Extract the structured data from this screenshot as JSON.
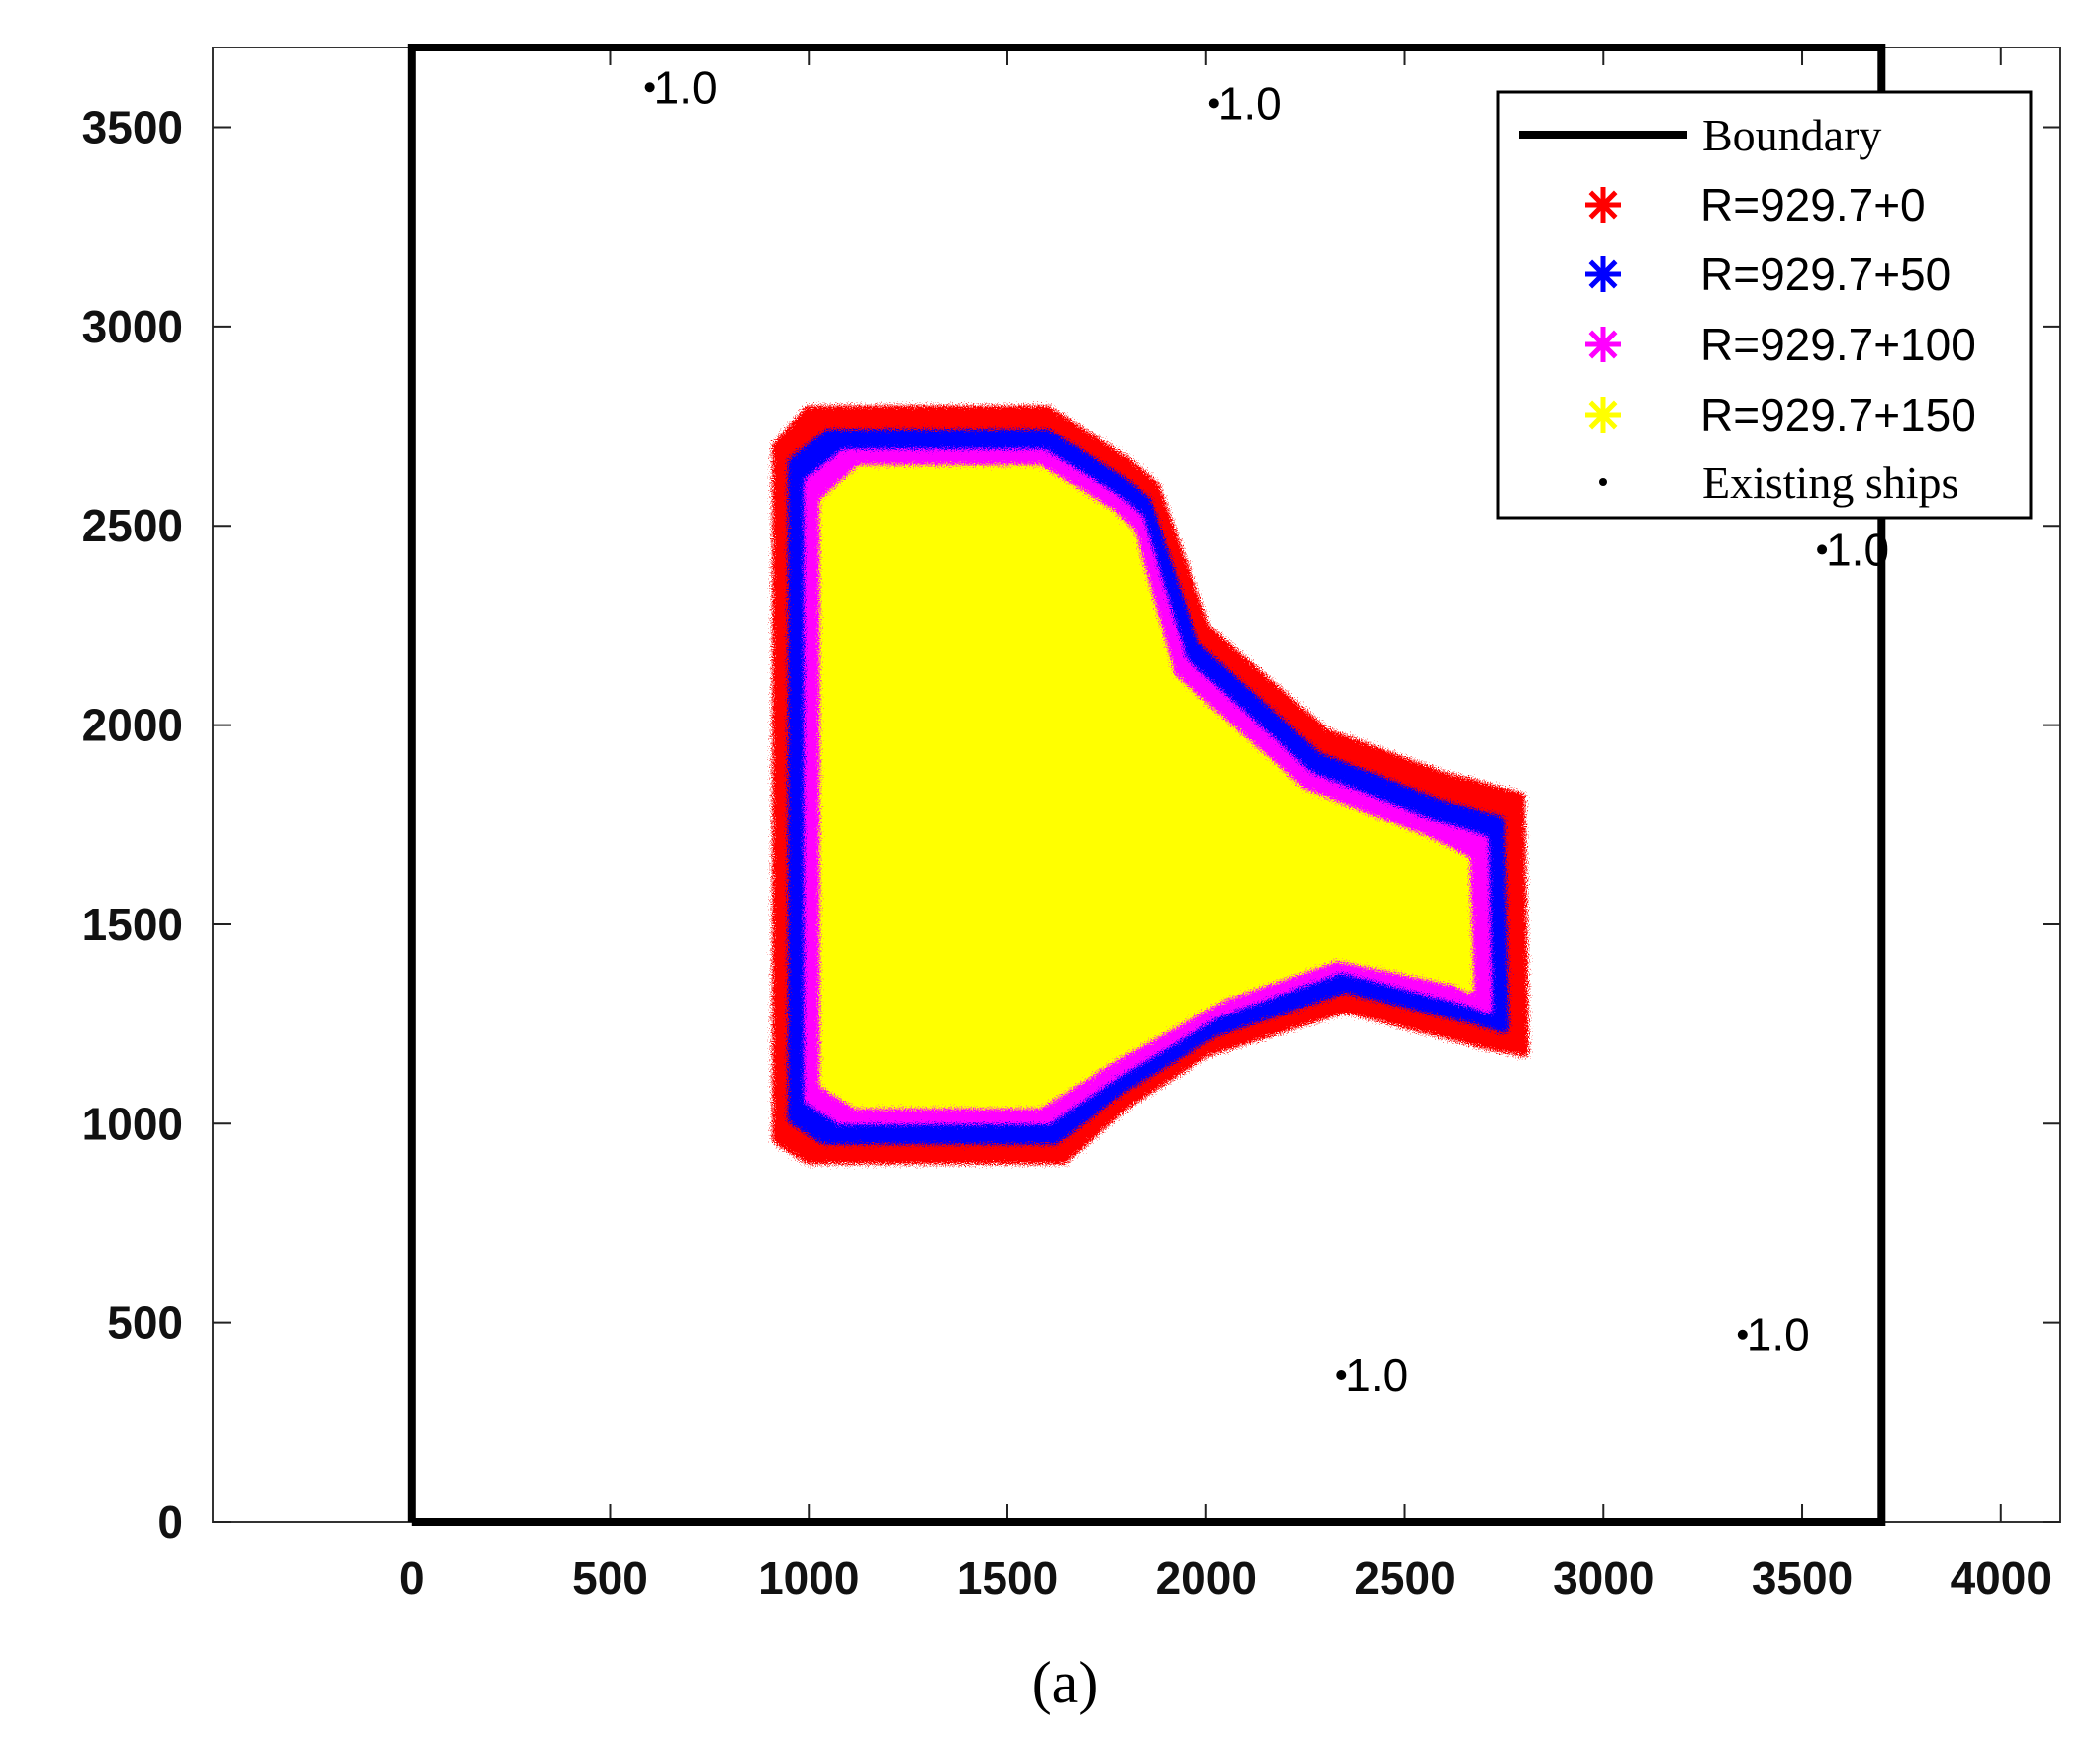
{
  "chart_data": {
    "type": "scatter",
    "xlim": [
      -500,
      4150
    ],
    "ylim": [
      0,
      3700
    ],
    "x_ticks": [
      0,
      500,
      1000,
      1500,
      2000,
      2500,
      3000,
      3500,
      4000
    ],
    "y_ticks": [
      0,
      500,
      1000,
      1500,
      2000,
      2500,
      3000,
      3500
    ],
    "x_tick_labels": [
      "0",
      "500",
      "1000",
      "1500",
      "2000",
      "2500",
      "3000",
      "3500",
      "4000"
    ],
    "y_tick_labels": [
      "0",
      "500",
      "1000",
      "1500",
      "2000",
      "2500",
      "3000",
      "3500"
    ],
    "grid": false,
    "legend_position": "top-right",
    "caption": "(a)",
    "boundary": {
      "name": "Boundary",
      "color": "#000000",
      "points": [
        [
          0,
          0
        ],
        [
          0,
          3700
        ],
        [
          3700,
          3700
        ],
        [
          3700,
          0
        ],
        [
          0,
          0
        ]
      ]
    },
    "regions": [
      {
        "name": "R=929.7+0",
        "color": "#ff0000",
        "polygon": [
          [
            920,
            2700
          ],
          [
            1000,
            2790
          ],
          [
            1600,
            2790
          ],
          [
            1800,
            2660
          ],
          [
            1870,
            2600
          ],
          [
            2000,
            2240
          ],
          [
            2300,
            1980
          ],
          [
            2600,
            1870
          ],
          [
            2790,
            1820
          ],
          [
            2800,
            1180
          ],
          [
            2700,
            1200
          ],
          [
            2350,
            1290
          ],
          [
            2000,
            1180
          ],
          [
            1800,
            1050
          ],
          [
            1640,
            910
          ],
          [
            1000,
            910
          ],
          [
            920,
            960
          ]
        ]
      },
      {
        "name": "R=929.7+50",
        "color": "#0000ff",
        "polygon": [
          [
            960,
            2660
          ],
          [
            1050,
            2730
          ],
          [
            1600,
            2730
          ],
          [
            1790,
            2610
          ],
          [
            1850,
            2560
          ],
          [
            1970,
            2200
          ],
          [
            2280,
            1920
          ],
          [
            2590,
            1800
          ],
          [
            2740,
            1760
          ],
          [
            2750,
            1240
          ],
          [
            2680,
            1260
          ],
          [
            2350,
            1340
          ],
          [
            2020,
            1230
          ],
          [
            1790,
            1090
          ],
          [
            1620,
            960
          ],
          [
            1040,
            960
          ],
          [
            960,
            1010
          ]
        ]
      },
      {
        "name": "R=929.7+100",
        "color": "#ff00ff",
        "polygon": [
          [
            1000,
            2610
          ],
          [
            1090,
            2680
          ],
          [
            1590,
            2680
          ],
          [
            1770,
            2570
          ],
          [
            1830,
            2520
          ],
          [
            1940,
            2160
          ],
          [
            2260,
            1870
          ],
          [
            2570,
            1750
          ],
          [
            2700,
            1710
          ],
          [
            2710,
            1290
          ],
          [
            2650,
            1310
          ],
          [
            2340,
            1390
          ],
          [
            2030,
            1280
          ],
          [
            1780,
            1130
          ],
          [
            1600,
            1010
          ],
          [
            1080,
            1010
          ],
          [
            1000,
            1060
          ]
        ]
      },
      {
        "name": "R=929.7+150",
        "color": "#ffff00",
        "polygon": [
          [
            1040,
            2560
          ],
          [
            1130,
            2640
          ],
          [
            1580,
            2640
          ],
          [
            1760,
            2530
          ],
          [
            1810,
            2480
          ],
          [
            1910,
            2120
          ],
          [
            2240,
            1830
          ],
          [
            2550,
            1710
          ],
          [
            2650,
            1660
          ],
          [
            2660,
            1340
          ],
          [
            2620,
            1360
          ],
          [
            2330,
            1420
          ],
          [
            2040,
            1320
          ],
          [
            1770,
            1170
          ],
          [
            1580,
            1050
          ],
          [
            1120,
            1050
          ],
          [
            1040,
            1100
          ]
        ]
      }
    ],
    "existing_ships": {
      "name": "Existing ships",
      "color": "#000000",
      "points": [
        {
          "x": 600,
          "y": 3600,
          "label": "1.0"
        },
        {
          "x": 2020,
          "y": 3560,
          "label": "1.0"
        },
        {
          "x": 3550,
          "y": 2440,
          "label": "1.0"
        },
        {
          "x": 3350,
          "y": 470,
          "label": "1.0"
        },
        {
          "x": 2340,
          "y": 370,
          "label": "1.0"
        }
      ]
    },
    "legend": [
      {
        "label": "Boundary",
        "kind": "line",
        "color": "#000000"
      },
      {
        "label": "R=929.7+0",
        "kind": "star",
        "color": "#ff0000"
      },
      {
        "label": "R=929.7+50",
        "kind": "star",
        "color": "#0000ff"
      },
      {
        "label": "R=929.7+100",
        "kind": "star",
        "color": "#ff00ff"
      },
      {
        "label": "R=929.7+150",
        "kind": "star",
        "color": "#ffff00"
      },
      {
        "label": "Existing ships",
        "kind": "dot",
        "color": "#000000"
      }
    ]
  }
}
